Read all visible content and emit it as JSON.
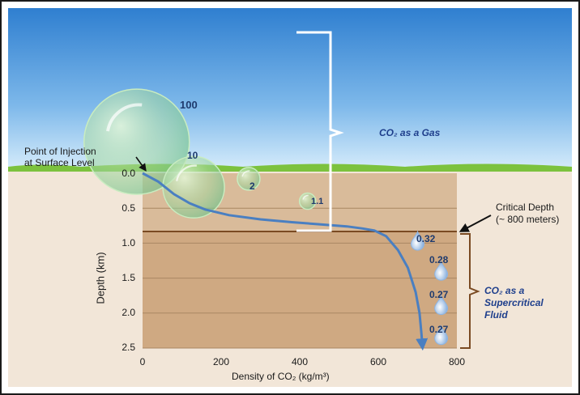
{
  "labels": {
    "point_of_injection_line1": "Point of Injection",
    "point_of_injection_line2": "at Surface Level",
    "critical_depth_line1": "Critical Depth",
    "critical_depth_line2": "(~ 800 meters)",
    "gas_phase": "CO₂ as a Gas",
    "supercritical_line1": "CO₂ as a",
    "supercritical_line2": "Supercritical",
    "supercritical_line3": "Fluid"
  },
  "chart_data": {
    "type": "line",
    "xlabel": "Density of CO₂ (kg/m³)",
    "ylabel": "Depth (km)",
    "xlim": [
      0,
      800
    ],
    "ylim": [
      0,
      2.5
    ],
    "x_ticks": [
      "0",
      "200",
      "400",
      "600",
      "800"
    ],
    "y_ticks": [
      "0.0",
      "0.5",
      "1.0",
      "1.5",
      "2.0",
      "2.5"
    ],
    "series": [
      {
        "x": [
          0,
          40,
          80,
          120,
          160,
          220,
          300,
          380,
          450,
          520,
          560,
          590,
          620,
          650,
          675,
          695,
          705,
          710,
          712
        ],
        "y": [
          0.0,
          0.12,
          0.3,
          0.43,
          0.52,
          0.6,
          0.66,
          0.7,
          0.73,
          0.76,
          0.79,
          0.82,
          0.9,
          1.1,
          1.35,
          1.7,
          2.0,
          2.3,
          2.45
        ]
      }
    ],
    "critical_depth_km": 0.8,
    "annotations": [
      {
        "value": "100",
        "density": -15,
        "depth": -0.45
      },
      {
        "value": "10",
        "density": 130,
        "depth": 0.2
      },
      {
        "value": "2",
        "density": 270,
        "depth": 0.08
      },
      {
        "value": "1.1",
        "density": 420,
        "depth": 0.4
      },
      {
        "value": "0.32",
        "density": 700,
        "depth": 0.95
      },
      {
        "value": "0.28",
        "density": 760,
        "depth": 1.38
      },
      {
        "value": "0.27",
        "density": 760,
        "depth": 1.87
      },
      {
        "value": "0.27",
        "density": 760,
        "depth": 2.3
      }
    ]
  }
}
